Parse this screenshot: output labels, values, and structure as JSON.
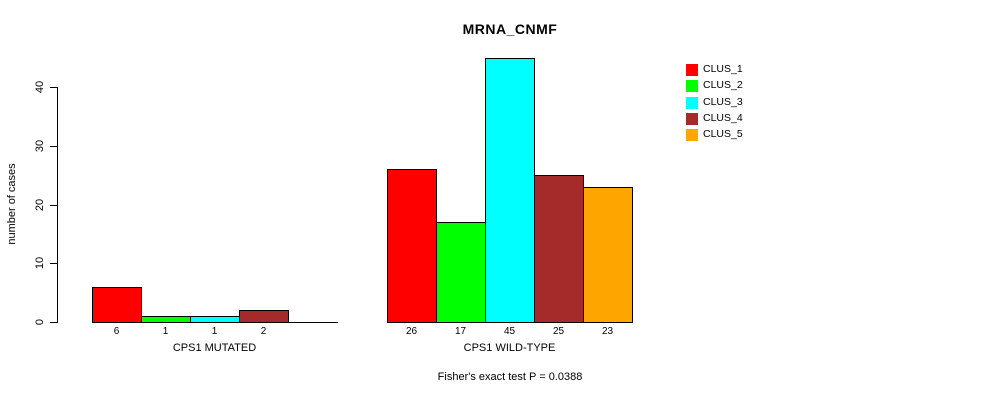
{
  "chart_data": {
    "type": "bar",
    "title": "MRNA_CNMF",
    "ylabel": "number of cases",
    "xlabel": "",
    "ylim": [
      0,
      45
    ],
    "yticks": [
      0,
      10,
      20,
      30,
      40
    ],
    "grid": false,
    "legend_position": "right",
    "categories": [
      "CPS1 MUTATED",
      "CPS1 WILD-TYPE"
    ],
    "series": [
      {
        "name": "CLUS_1",
        "color": "#ff0000",
        "values": [
          6,
          26
        ]
      },
      {
        "name": "CLUS_2",
        "color": "#00ff00",
        "values": [
          1,
          17
        ]
      },
      {
        "name": "CLUS_3",
        "color": "#00ffff",
        "values": [
          1,
          45
        ]
      },
      {
        "name": "CLUS_4",
        "color": "#a52a2a",
        "values": [
          2,
          25
        ]
      },
      {
        "name": "CLUS_5",
        "color": "#ffa500",
        "values": [
          0,
          23
        ]
      }
    ],
    "bar_labels": [
      [
        "6",
        "1",
        "1",
        "2",
        ""
      ],
      [
        "26",
        "17",
        "45",
        "25",
        "23"
      ]
    ],
    "footnote": "Fisher's exact test P = 0.0388",
    "axis_color": "#000000",
    "bar_border_color": "#000000"
  }
}
